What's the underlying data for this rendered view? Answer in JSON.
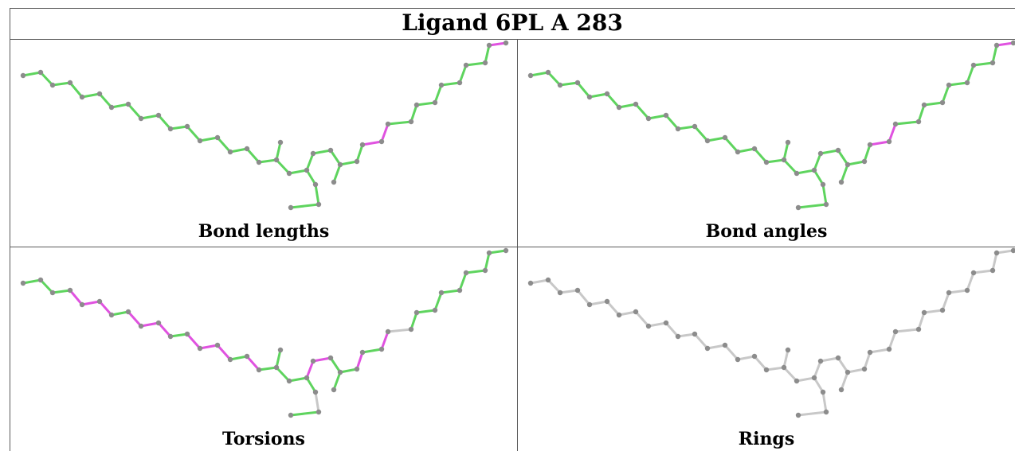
{
  "title": "Ligand 6PL A 283",
  "colors": {
    "good": "#5ed45e",
    "outlier": "#e052e0",
    "neutral": "#c8c8c8",
    "atom": "#8c8c8c",
    "border": "#5a5a5a"
  },
  "panels": [
    {
      "caption": "Bond lengths",
      "outlier_bonds": [
        [
          25,
          26
        ],
        [
          26,
          27
        ],
        [
          35,
          36
        ],
        [
          36,
          37
        ]
      ],
      "neutral_bonds": [
        [
          41,
          42
        ]
      ],
      "all_neutral": false
    },
    {
      "caption": "Bond angles",
      "outlier_bonds": [
        [
          25,
          26
        ],
        [
          26,
          27
        ],
        [
          35,
          36
        ],
        [
          36,
          37
        ],
        [
          37,
          38
        ],
        [
          37,
          40
        ]
      ],
      "neutral_bonds": [],
      "all_neutral": false
    },
    {
      "caption": "Torsions",
      "outlier_bonds": [
        [
          3,
          4
        ],
        [
          4,
          5
        ],
        [
          7,
          8
        ],
        [
          8,
          9
        ],
        [
          11,
          12
        ],
        [
          12,
          13
        ],
        [
          24,
          25
        ],
        [
          26,
          27
        ],
        [
          9,
          10
        ],
        [
          5,
          6
        ],
        [
          13,
          14
        ],
        [
          15,
          16
        ],
        [
          20,
          21
        ],
        [
          21,
          22
        ],
        [
          12,
          11
        ]
      ],
      "neutral_bonds": [
        [
          25,
          41
        ],
        [
          27,
          28
        ],
        [
          38,
          39
        ],
        [
          39,
          40
        ],
        [
          36,
          37
        ],
        [
          37,
          40
        ]
      ],
      "all_neutral": false
    },
    {
      "caption": "Rings",
      "outlier_bonds": [],
      "neutral_bonds": [],
      "all_neutral": true
    }
  ]
}
